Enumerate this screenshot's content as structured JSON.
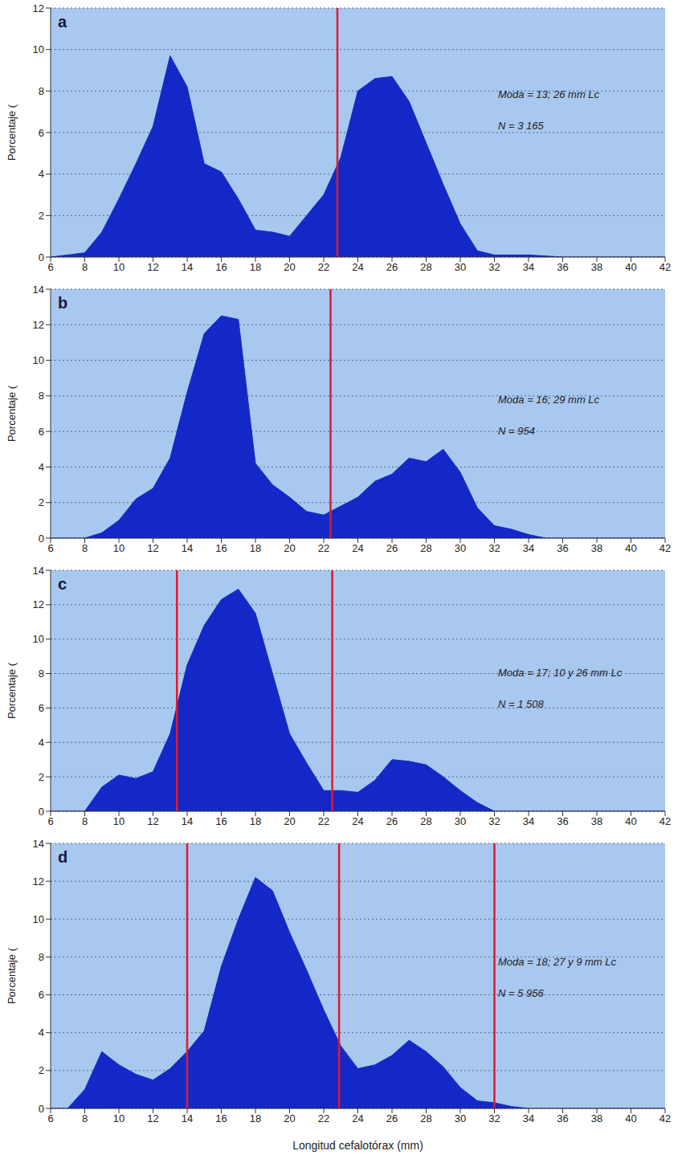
{
  "chart_data": [
    {
      "type": "area",
      "label": "a",
      "color": "#1428c8",
      "grid": true,
      "y_label": "Porcentaje (",
      "annotations": [
        "Moda = 13; 26 mm Lc",
        "N = 3 165"
      ],
      "reference_lines": [
        {
          "x": 22.8,
          "color": "#e3182d"
        }
      ],
      "x": [
        6,
        7,
        8,
        9,
        10,
        11,
        12,
        13,
        14,
        15,
        16,
        17,
        18,
        19,
        20,
        21,
        22,
        23,
        24,
        25,
        26,
        27,
        28,
        29,
        30,
        31,
        32,
        33,
        34,
        35,
        36,
        37,
        38,
        39,
        40,
        41,
        42
      ],
      "values": [
        0,
        0.1,
        0.2,
        1.2,
        2.8,
        4.5,
        6.3,
        9.7,
        8.2,
        4.5,
        4.1,
        2.8,
        1.3,
        1.2,
        1.0,
        2.0,
        3.0,
        4.8,
        8.0,
        8.6,
        8.7,
        7.5,
        5.5,
        3.5,
        1.6,
        0.3,
        0.1,
        0.1,
        0.1,
        0.05,
        0,
        0,
        0,
        0,
        0,
        0,
        0
      ],
      "xlim": [
        6,
        42
      ],
      "xticks": [
        6,
        8,
        10,
        12,
        14,
        16,
        18,
        20,
        22,
        24,
        26,
        28,
        30,
        32,
        34,
        36,
        38,
        40,
        42
      ],
      "ylim": [
        0,
        12
      ],
      "yticks": [
        0,
        2,
        4,
        6,
        8,
        10,
        12
      ]
    },
    {
      "type": "area",
      "label": "b",
      "color": "#1428c8",
      "grid": true,
      "y_label": "Porcentaje (",
      "annotations": [
        "Moda = 16; 29 mm Lc",
        "N = 954"
      ],
      "reference_lines": [
        {
          "x": 22.4,
          "color": "#e3182d"
        }
      ],
      "x": [
        6,
        7,
        8,
        9,
        10,
        11,
        12,
        13,
        14,
        15,
        16,
        17,
        18,
        19,
        20,
        21,
        22,
        23,
        24,
        25,
        26,
        27,
        28,
        29,
        30,
        31,
        32,
        33,
        34,
        35,
        36,
        37,
        38,
        39,
        40,
        41,
        42
      ],
      "values": [
        0,
        0,
        0,
        0.3,
        1.0,
        2.2,
        2.8,
        4.5,
        8.2,
        11.5,
        12.5,
        12.3,
        4.2,
        3.0,
        2.3,
        1.5,
        1.3,
        1.8,
        2.3,
        3.2,
        3.6,
        4.5,
        4.3,
        5.0,
        3.7,
        1.7,
        0.7,
        0.5,
        0.2,
        0,
        0,
        0,
        0,
        0,
        0,
        0,
        0
      ],
      "xlim": [
        6,
        42
      ],
      "xticks": [
        6,
        8,
        10,
        12,
        14,
        16,
        18,
        20,
        22,
        24,
        26,
        28,
        30,
        32,
        34,
        36,
        38,
        40,
        42
      ],
      "ylim": [
        0,
        14
      ],
      "yticks": [
        0,
        2,
        4,
        6,
        8,
        10,
        12,
        14
      ]
    },
    {
      "type": "area",
      "label": "c",
      "color": "#1428c8",
      "grid": true,
      "y_label": "Porcentaje (",
      "annotations": [
        "Moda = 17; 10 y 26 mm Lc",
        "N = 1 508"
      ],
      "reference_lines": [
        {
          "x": 13.4,
          "color": "#e3182d"
        },
        {
          "x": 22.5,
          "color": "#e3182d"
        }
      ],
      "x": [
        6,
        7,
        8,
        9,
        10,
        11,
        12,
        13,
        14,
        15,
        16,
        17,
        18,
        19,
        20,
        21,
        22,
        23,
        24,
        25,
        26,
        27,
        28,
        29,
        30,
        31,
        32,
        33,
        34,
        35,
        36,
        37,
        38,
        39,
        40,
        41,
        42
      ],
      "values": [
        0,
        0,
        0,
        1.4,
        2.1,
        1.9,
        2.3,
        4.5,
        8.5,
        10.8,
        12.3,
        12.9,
        11.5,
        8.0,
        4.5,
        2.8,
        1.2,
        1.2,
        1.1,
        1.8,
        3.0,
        2.9,
        2.7,
        2.0,
        1.2,
        0.5,
        0,
        0,
        0,
        0,
        0,
        0,
        0,
        0,
        0,
        0,
        0
      ],
      "xlim": [
        6,
        42
      ],
      "xticks": [
        6,
        8,
        10,
        12,
        14,
        16,
        18,
        20,
        22,
        24,
        26,
        28,
        30,
        32,
        34,
        36,
        38,
        40,
        42
      ],
      "ylim": [
        0,
        14
      ],
      "yticks": [
        0,
        2,
        4,
        6,
        8,
        10,
        12,
        14
      ]
    },
    {
      "type": "area",
      "label": "d",
      "color": "#1428c8",
      "grid": true,
      "y_label": "Porcentaje (",
      "x_label": "Longitud cefalotórax (mm)",
      "annotations": [
        "Moda = 18; 27 y 9 mm Lc",
        "N = 5 956"
      ],
      "reference_lines": [
        {
          "x": 14,
          "color": "#e3182d"
        },
        {
          "x": 22.9,
          "color": "#e3182d"
        },
        {
          "x": 32,
          "color": "#e3182d"
        }
      ],
      "x": [
        6,
        7,
        8,
        9,
        10,
        11,
        12,
        13,
        14,
        15,
        16,
        17,
        18,
        19,
        20,
        21,
        22,
        23,
        24,
        25,
        26,
        27,
        28,
        29,
        30,
        31,
        32,
        33,
        34,
        35,
        36,
        37,
        38,
        39,
        40,
        41,
        42
      ],
      "values": [
        0,
        0,
        1.0,
        3.0,
        2.3,
        1.8,
        1.5,
        2.1,
        3.0,
        4.1,
        7.5,
        10.0,
        12.2,
        11.5,
        9.3,
        7.3,
        5.2,
        3.3,
        2.1,
        2.3,
        2.8,
        3.6,
        3.0,
        2.2,
        1.1,
        0.4,
        0.3,
        0.1,
        0,
        0,
        0,
        0,
        0,
        0,
        0,
        0,
        0
      ],
      "xlim": [
        6,
        42
      ],
      "xticks": [
        6,
        8,
        10,
        12,
        14,
        16,
        18,
        20,
        22,
        24,
        26,
        28,
        30,
        32,
        34,
        36,
        38,
        40,
        42
      ],
      "ylim": [
        0,
        14
      ],
      "yticks": [
        0,
        2,
        4,
        6,
        8,
        10,
        12,
        14
      ]
    }
  ]
}
